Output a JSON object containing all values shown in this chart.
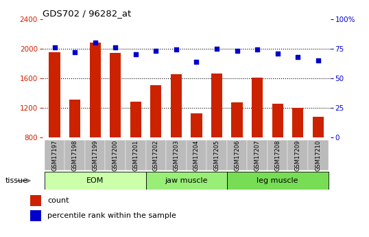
{
  "title": "GDS702 / 96282_at",
  "samples": [
    "GSM17197",
    "GSM17198",
    "GSM17199",
    "GSM17200",
    "GSM17201",
    "GSM17202",
    "GSM17203",
    "GSM17204",
    "GSM17205",
    "GSM17206",
    "GSM17207",
    "GSM17208",
    "GSM17209",
    "GSM17210"
  ],
  "counts": [
    1950,
    1310,
    2080,
    1940,
    1280,
    1510,
    1650,
    1130,
    1660,
    1270,
    1610,
    1260,
    1200,
    1080
  ],
  "percentiles": [
    76,
    72,
    80,
    76,
    70,
    73,
    74,
    64,
    75,
    73,
    74,
    71,
    68,
    65
  ],
  "bar_color": "#cc2200",
  "dot_color": "#0000cc",
  "ylim_left": [
    800,
    2400
  ],
  "ylim_right": [
    0,
    100
  ],
  "yticks_left": [
    800,
    1200,
    1600,
    2000,
    2400
  ],
  "yticks_right": [
    0,
    25,
    50,
    75,
    100
  ],
  "groups": [
    {
      "label": "EOM",
      "start": 0,
      "end": 5,
      "color": "#ccffaa"
    },
    {
      "label": "jaw muscle",
      "start": 5,
      "end": 9,
      "color": "#99ee77"
    },
    {
      "label": "leg muscle",
      "start": 9,
      "end": 14,
      "color": "#77dd55"
    }
  ],
  "tissue_label": "tissue",
  "legend_count_label": "count",
  "legend_percentile_label": "percentile rank within the sample",
  "tick_bg_color": "#bbbbbb",
  "grid_dotted_ticks": [
    1200,
    1600,
    2000
  ]
}
